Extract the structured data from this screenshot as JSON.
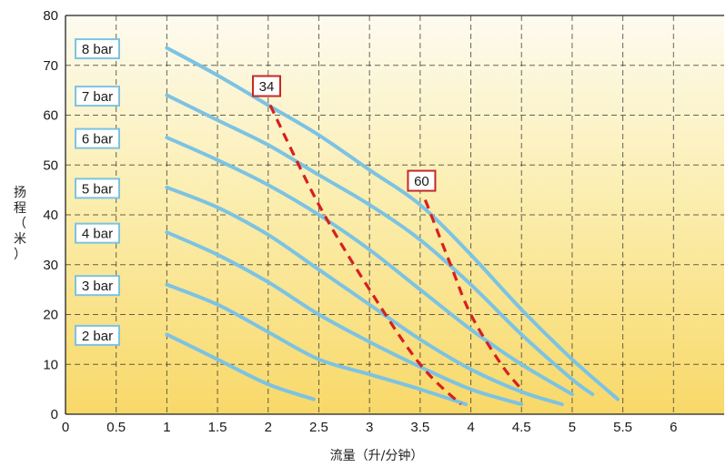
{
  "chart_data": {
    "type": "line",
    "xlabel": "流量（升/分钟）",
    "ylabel_chars": [
      "扬",
      "程",
      "（",
      "米",
      "）"
    ],
    "xlim": [
      0,
      6.5
    ],
    "ylim": [
      0,
      80
    ],
    "x_ticks": [
      "0",
      "0.5",
      "1",
      "1.5",
      "2",
      "2.5",
      "3",
      "3.5",
      "4",
      "4.5",
      "5",
      "5.5",
      "6"
    ],
    "y_ticks": [
      "0",
      "10",
      "20",
      "30",
      "40",
      "50",
      "60",
      "70",
      "80"
    ],
    "grid": true,
    "grid_style": "dashed",
    "background": "yellow-gradient",
    "series": [
      {
        "name": "8 bar",
        "x": [
          1.0,
          1.5,
          2.0,
          2.5,
          3.0,
          3.5,
          4.0,
          4.5,
          5.0,
          5.45
        ],
        "y": [
          73.5,
          68,
          62,
          56,
          49,
          42,
          32,
          21,
          11,
          3
        ]
      },
      {
        "name": "7 bar",
        "x": [
          1.0,
          1.5,
          2.0,
          2.5,
          3.0,
          3.5,
          4.0,
          4.5,
          5.0,
          5.2
        ],
        "y": [
          64,
          59,
          54,
          48,
          42,
          35,
          26,
          16,
          7,
          4
        ]
      },
      {
        "name": "6 bar",
        "x": [
          1.0,
          1.5,
          2.0,
          2.5,
          3.0,
          3.5,
          4.0,
          4.5,
          5.0
        ],
        "y": [
          55.5,
          51,
          46,
          40,
          33,
          25,
          17,
          10,
          4
        ]
      },
      {
        "name": "5 bar",
        "x": [
          1.0,
          1.5,
          2.0,
          2.5,
          3.0,
          3.5,
          4.0,
          4.5,
          4.9
        ],
        "y": [
          45.5,
          41.5,
          36,
          29,
          22,
          15,
          9,
          4.5,
          2
        ]
      },
      {
        "name": "4 bar",
        "x": [
          1.0,
          1.5,
          2.0,
          2.5,
          3.0,
          3.5,
          4.0,
          4.5
        ],
        "y": [
          36.5,
          32,
          26.5,
          20,
          14.5,
          9.5,
          5,
          2
        ]
      },
      {
        "name": "3 bar",
        "x": [
          1.0,
          1.5,
          2.0,
          2.5,
          3.0,
          3.5,
          3.95
        ],
        "y": [
          26,
          22,
          16.5,
          11,
          8,
          5,
          2
        ]
      },
      {
        "name": "2 bar",
        "x": [
          1.0,
          1.5,
          2.0,
          2.45
        ],
        "y": [
          16,
          11,
          6,
          3
        ]
      }
    ],
    "efficiency_lines": [
      {
        "label": "34",
        "x": [
          2.02,
          2.5,
          3.0,
          3.5,
          3.9
        ],
        "y": [
          62,
          42,
          25,
          10,
          2
        ]
      },
      {
        "label": "60",
        "x": [
          3.55,
          3.8,
          4.0,
          4.3,
          4.5
        ],
        "y": [
          43,
          30,
          20,
          10,
          5
        ]
      }
    ],
    "colors": {
      "curve": "#7cc3e3",
      "efficiency": "#d62020",
      "grid": "#333333",
      "label_box_border": "#7cc3e3",
      "efficiency_box_border": "#c62828",
      "bg_top": "#fdfbf0",
      "bg_bottom": "#f8d868"
    }
  }
}
